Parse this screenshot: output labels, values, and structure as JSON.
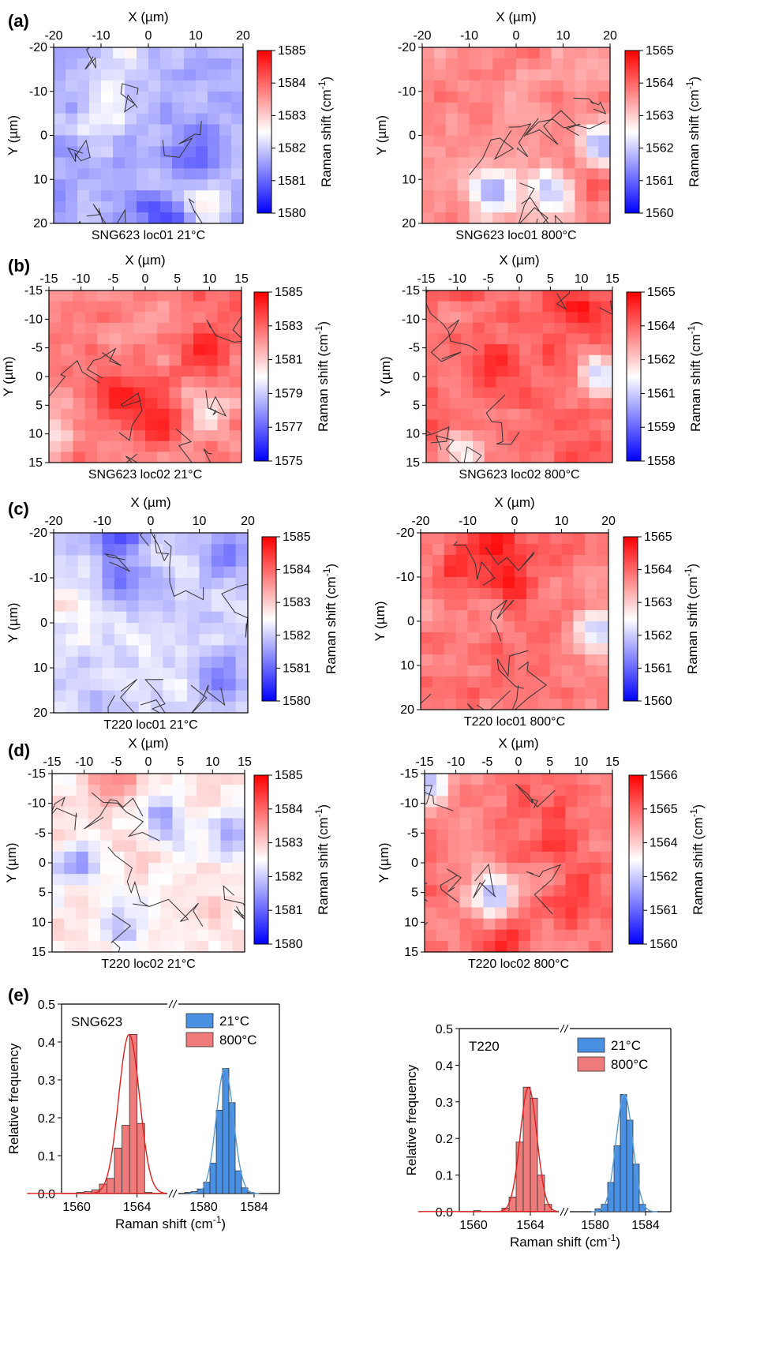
{
  "colors": {
    "low": "#0000ff",
    "mid": "#ffffff",
    "high": "#ff0000",
    "contour": "#333333",
    "hist21": "#4a90e2",
    "hist800": "#f07b7b",
    "fit21": "#5b9bd5",
    "fit800": "#e02020"
  },
  "panel_labels": [
    "(a)",
    "(b)",
    "(c)",
    "(d)",
    "(e)"
  ],
  "x_axis_label": "X (µm)",
  "y_axis_label": "Y (µm)",
  "colorbar_label": "Raman shift (cm",
  "colorbar_label_sup": "-1",
  "colorbar_label_close": ")",
  "hist_xlabel": "Raman shift (cm",
  "hist_ylabel": "Relative frequency",
  "chart_data": [
    {
      "type": "heatmap",
      "caption": "SNG623 loc01 21°C",
      "xlim": [
        -20,
        20
      ],
      "ylim": [
        -20,
        20
      ],
      "xticks": [
        "-20",
        "-10",
        "0",
        "10",
        "20"
      ],
      "yticks": [
        "-20",
        "-10",
        "0",
        "10",
        "20"
      ],
      "colorbar_ticks": [
        "1585",
        "1584",
        "1583",
        "1582",
        "1581",
        "1580"
      ],
      "clim": [
        1580,
        1585
      ],
      "mean_level": 0.35
    },
    {
      "type": "heatmap",
      "caption": "SNG623 loc01 800°C",
      "xlim": [
        -20,
        20
      ],
      "ylim": [
        -20,
        20
      ],
      "xticks": [
        "-20",
        "-10",
        "0",
        "10",
        "20"
      ],
      "yticks": [
        "-20",
        "-10",
        "0",
        "10",
        "20"
      ],
      "colorbar_ticks": [
        "1565",
        "1564",
        "1563",
        "1562",
        "1561",
        "1560"
      ],
      "clim": [
        1560,
        1565
      ],
      "mean_level": 0.72
    },
    {
      "type": "heatmap",
      "caption": "SNG623 loc02 21°C",
      "xlim": [
        -15,
        15
      ],
      "ylim": [
        -15,
        15
      ],
      "xticks": [
        "-15",
        "-10",
        "-5",
        "0",
        "5",
        "10",
        "15"
      ],
      "yticks": [
        "-15",
        "-10",
        "-5",
        "0",
        "5",
        "10",
        "15"
      ],
      "colorbar_ticks": [
        "1585",
        "1583",
        "1581",
        "1579",
        "1577",
        "1575"
      ],
      "clim": [
        1575,
        1585
      ],
      "mean_level": 0.76
    },
    {
      "type": "heatmap",
      "caption": "SNG623 loc02 800°C",
      "xlim": [
        -15,
        15
      ],
      "ylim": [
        -15,
        15
      ],
      "xticks": [
        "-15",
        "-10",
        "-5",
        "0",
        "5",
        "10",
        "15"
      ],
      "yticks": [
        "-15",
        "-10",
        "-5",
        "0",
        "5",
        "10",
        "15"
      ],
      "colorbar_ticks": [
        "1565",
        "1564",
        "1562",
        "1561",
        "1559",
        "1558"
      ],
      "clim": [
        1558,
        1565
      ],
      "mean_level": 0.8
    },
    {
      "type": "heatmap",
      "caption": "T220 loc01 21°C",
      "xlim": [
        -20,
        20
      ],
      "ylim": [
        -20,
        20
      ],
      "xticks": [
        "-20",
        "-10",
        "0",
        "10",
        "20"
      ],
      "yticks": [
        "-20",
        "-10",
        "0",
        "10",
        "20"
      ],
      "colorbar_ticks": [
        "1585",
        "1584",
        "1583",
        "1582",
        "1581",
        "1580"
      ],
      "clim": [
        1580,
        1585
      ],
      "mean_level": 0.42
    },
    {
      "type": "heatmap",
      "caption": "T220 loc01 800°C",
      "xlim": [
        -20,
        20
      ],
      "ylim": [
        -20,
        20
      ],
      "xticks": [
        "-20",
        "-10",
        "0",
        "10",
        "20"
      ],
      "yticks": [
        "-20",
        "-10",
        "0",
        "10",
        "20"
      ],
      "colorbar_ticks": [
        "1565",
        "1564",
        "1563",
        "1562",
        "1561",
        "1560"
      ],
      "clim": [
        1560,
        1565
      ],
      "mean_level": 0.76
    },
    {
      "type": "heatmap",
      "caption": "T220 loc02 21°C",
      "xlim": [
        -15,
        15
      ],
      "ylim": [
        -15,
        15
      ],
      "xticks": [
        "-15",
        "-10",
        "-5",
        "0",
        "5",
        "10",
        "15"
      ],
      "yticks": [
        "-15",
        "-10",
        "-5",
        "0",
        "5",
        "10",
        "15"
      ],
      "colorbar_ticks": [
        "1585",
        "1584",
        "1583",
        "1582",
        "1581",
        "1580"
      ],
      "clim": [
        1580,
        1585
      ],
      "mean_level": 0.55
    },
    {
      "type": "heatmap",
      "caption": "T220 loc02 800°C",
      "xlim": [
        -15,
        15
      ],
      "ylim": [
        -15,
        15
      ],
      "xticks": [
        "-15",
        "-10",
        "-5",
        "0",
        "5",
        "10",
        "15"
      ],
      "yticks": [
        "-15",
        "-10",
        "-5",
        "0",
        "5",
        "10",
        "15"
      ],
      "colorbar_ticks": [
        "1566",
        "1565",
        "1564",
        "1562",
        "1561",
        "1560"
      ],
      "clim": [
        1560,
        1566
      ],
      "mean_level": 0.76
    },
    {
      "type": "bar",
      "sample": "SNG623",
      "ylabel": "Relative frequency",
      "xlabel": "Raman shift (cm-1)",
      "ylim": [
        0,
        0.5
      ],
      "yticks": [
        "0.0",
        "0.1",
        "0.2",
        "0.3",
        "0.4",
        "0.5"
      ],
      "xticks_left": [
        "1560",
        "1564"
      ],
      "xticks_right": [
        "1580",
        "1584"
      ],
      "x_break": [
        1566,
        1578
      ],
      "series": [
        {
          "name": "21°C",
          "bin_width": 0.5,
          "bins": [
            1578.5,
            1579,
            1579.5,
            1580,
            1580.5,
            1581,
            1581.5,
            1582,
            1582.5,
            1583,
            1583.5
          ],
          "values": [
            0.003,
            0.005,
            0.012,
            0.03,
            0.08,
            0.22,
            0.33,
            0.24,
            0.06,
            0.015,
            0.003
          ]
        },
        {
          "name": "800°C",
          "bin_width": 0.5,
          "bins": [
            1560,
            1560.5,
            1561,
            1561.5,
            1562,
            1562.5,
            1563,
            1563.5,
            1564,
            1564.5
          ],
          "values": [
            0.003,
            0.005,
            0.01,
            0.025,
            0.04,
            0.12,
            0.18,
            0.42,
            0.185,
            0.003
          ]
        }
      ]
    },
    {
      "type": "bar",
      "sample": "T220",
      "ylabel": "Relative frequency",
      "xlabel": "Raman shift (cm-1)",
      "ylim": [
        0,
        0.5
      ],
      "yticks": [
        "0.0",
        "0.1",
        "0.2",
        "0.3",
        "0.4",
        "0.5"
      ],
      "xticks_left": [
        "1560",
        "1564"
      ],
      "xticks_right": [
        "1580",
        "1584"
      ],
      "x_break": [
        1566,
        1578
      ],
      "series": [
        {
          "name": "21°C",
          "bin_width": 0.5,
          "bins": [
            1580,
            1580.5,
            1581,
            1581.5,
            1582,
            1582.5,
            1583,
            1583.5
          ],
          "values": [
            0.008,
            0.02,
            0.08,
            0.18,
            0.32,
            0.25,
            0.13,
            0.02
          ]
        },
        {
          "name": "800°C",
          "bin_width": 0.5,
          "bins": [
            1560,
            1562,
            1562.5,
            1563,
            1563.5,
            1564,
            1564.5,
            1565
          ],
          "values": [
            0.003,
            0.01,
            0.04,
            0.19,
            0.34,
            0.31,
            0.1,
            0.02
          ]
        }
      ]
    }
  ]
}
